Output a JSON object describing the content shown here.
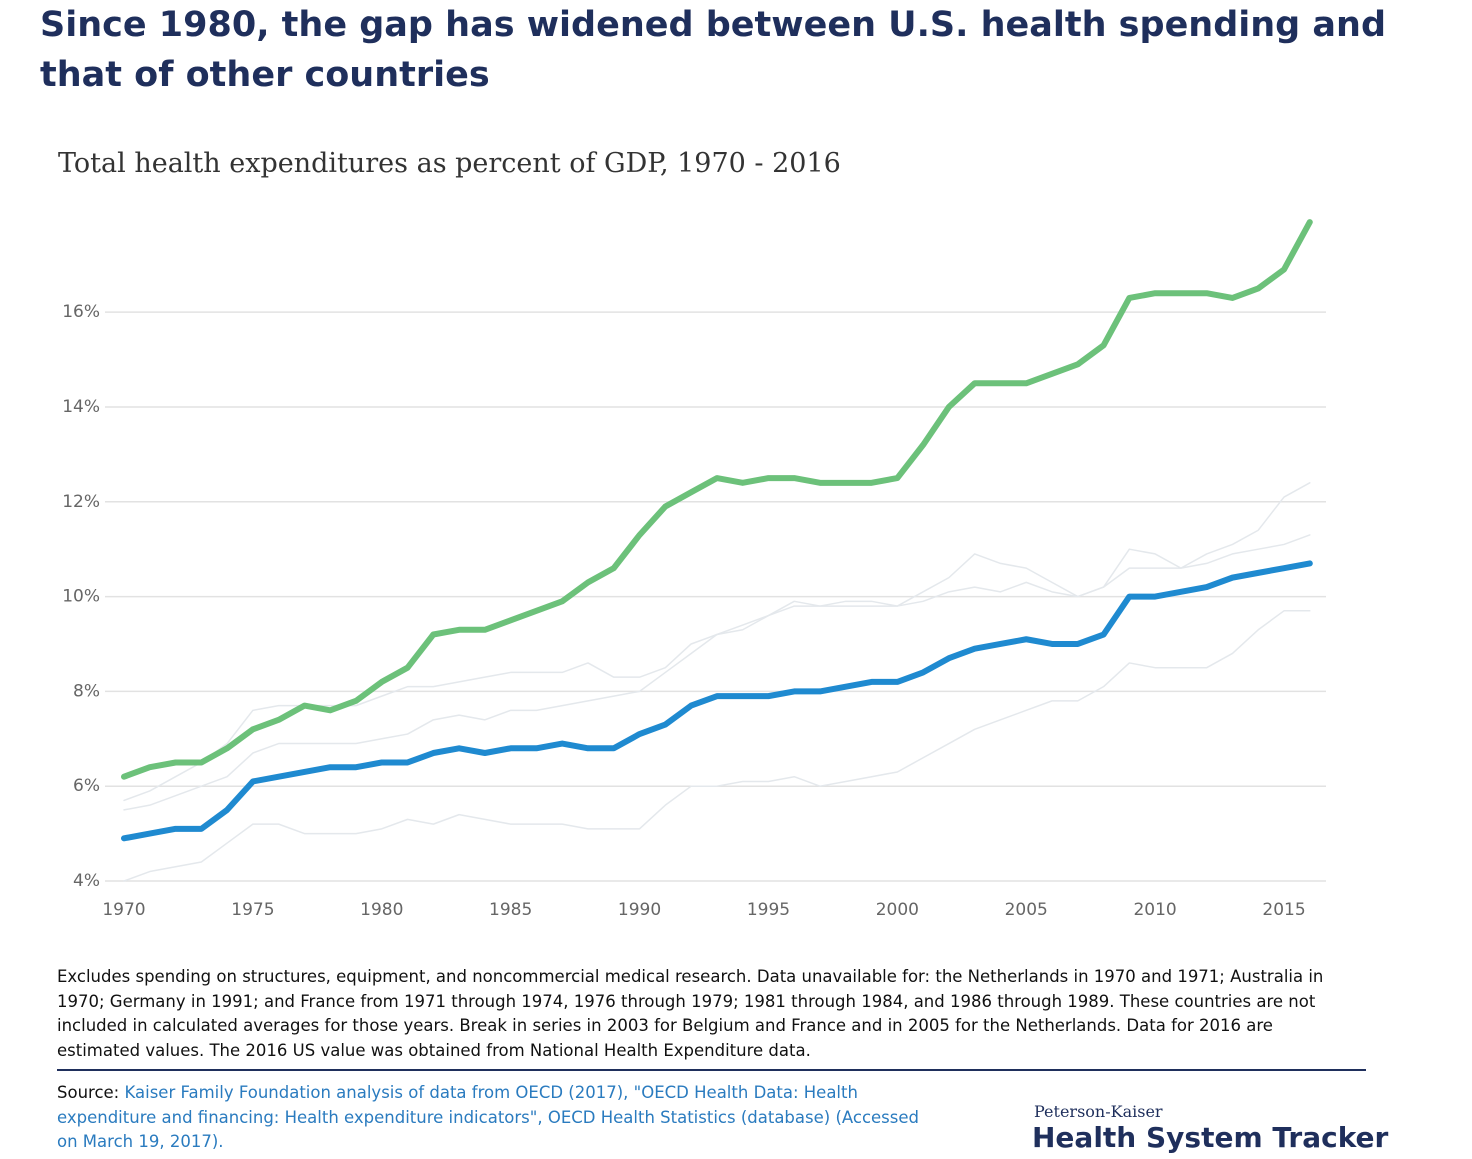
{
  "chart_data": {
    "type": "line",
    "title": "Since 1980, the gap has widened between U.S. health spending and that of other countries",
    "subtitle": "Total health expenditures as percent of GDP, 1970 - 2016",
    "note": "Excludes spending on structures, equipment, and noncommercial medical research. Data unavailable for: the Netherlands in 1970 and 1971; Australia in 1970; Germany in 1991; and France from 1971 through 1974, 1976 through 1979; 1981 through 1984, and 1986 through 1989. These countries are not included in calculated averages for those years. Break in series in 2003 for Belgium and France and in 2005 for the Netherlands. Data for 2016 are estimated values. The 2016 US value was obtained from National Health Expenditure data.",
    "source_label": "Source:",
    "source": "Kaiser Family Foundation analysis of data from OECD (2017), \"OECD Health Data: Health expenditure and financing: Health expenditure indicators\", OECD Health Statistics (database) (Accessed on March 19, 2017).",
    "brand_small": "Peterson-Kaiser",
    "brand_big": "Health System Tracker",
    "x": [
      1970,
      1971,
      1972,
      1973,
      1974,
      1975,
      1976,
      1977,
      1978,
      1979,
      1980,
      1981,
      1982,
      1983,
      1984,
      1985,
      1986,
      1987,
      1988,
      1989,
      1990,
      1991,
      1992,
      1993,
      1994,
      1995,
      1996,
      1997,
      1998,
      1999,
      2000,
      2001,
      2002,
      2003,
      2004,
      2005,
      2006,
      2007,
      2008,
      2009,
      2010,
      2011,
      2012,
      2013,
      2014,
      2015,
      2016
    ],
    "xlim": [
      1970,
      2016
    ],
    "xticks": [
      1970,
      1975,
      1980,
      1985,
      1990,
      1995,
      2000,
      2005,
      2010,
      2015
    ],
    "ylim": [
      4,
      18.4
    ],
    "yticks": [
      {
        "value": 4,
        "label": "4%"
      },
      {
        "value": 6,
        "label": "6%"
      },
      {
        "value": 8,
        "label": "8%"
      },
      {
        "value": 10,
        "label": "10%"
      },
      {
        "value": 12,
        "label": "12%"
      },
      {
        "value": 14,
        "label": "14%"
      },
      {
        "value": 16,
        "label": "16%"
      }
    ],
    "grid": true,
    "series": [
      {
        "color": "#e4e8ec",
        "width": 1.5,
        "values": [
          5.5,
          5.6,
          5.8,
          6.0,
          6.2,
          6.7,
          6.9,
          6.9,
          6.9,
          6.9,
          7.0,
          7.1,
          7.4,
          7.5,
          7.4,
          7.6,
          7.6,
          7.7,
          7.8,
          7.9,
          8.0,
          8.4,
          8.8,
          9.2,
          9.3,
          9.6,
          9.8,
          9.8,
          9.9,
          9.9,
          9.8,
          10.1,
          10.4,
          10.9,
          10.7,
          10.6,
          10.3,
          10.0,
          10.2,
          10.6,
          10.6,
          10.6,
          10.9,
          11.1,
          11.4,
          12.1,
          12.4
        ]
      },
      {
        "color": "#e4e8ec",
        "width": 1.5,
        "values": [
          5.7,
          5.9,
          6.2,
          6.5,
          6.9,
          7.6,
          7.7,
          7.7,
          7.7,
          7.7,
          7.9,
          8.1,
          8.1,
          8.2,
          8.3,
          8.4,
          8.4,
          8.4,
          8.6,
          8.3,
          8.3,
          8.5,
          9.0,
          9.2,
          9.4,
          9.6,
          9.9,
          9.8,
          9.8,
          9.8,
          9.8,
          9.9,
          10.1,
          10.2,
          10.1,
          10.3,
          10.1,
          10.0,
          10.2,
          11.0,
          10.9,
          10.6,
          10.7,
          10.9,
          11.0,
          11.1,
          11.3
        ]
      },
      {
        "color": "#e4e8ec",
        "width": 1.5,
        "values": [
          4.0,
          4.2,
          4.3,
          4.4,
          4.8,
          5.2,
          5.2,
          5.0,
          5.0,
          5.0,
          5.1,
          5.3,
          5.2,
          5.4,
          5.3,
          5.2,
          5.2,
          5.2,
          5.1,
          5.1,
          5.1,
          5.6,
          6.0,
          6.0,
          6.1,
          6.1,
          6.2,
          6.0,
          6.1,
          6.2,
          6.3,
          6.6,
          6.9,
          7.2,
          7.4,
          7.6,
          7.8,
          7.8,
          8.1,
          8.6,
          8.5,
          8.5,
          8.5,
          8.8,
          9.3,
          9.7,
          9.7
        ]
      },
      {
        "color": "#6cc17a",
        "width": 6,
        "values": [
          6.2,
          6.4,
          6.5,
          6.5,
          6.8,
          7.2,
          7.4,
          7.7,
          7.6,
          7.8,
          8.2,
          8.5,
          9.2,
          9.3,
          9.3,
          9.5,
          9.7,
          9.9,
          10.3,
          10.6,
          11.3,
          11.9,
          12.2,
          12.5,
          12.4,
          12.5,
          12.5,
          12.4,
          12.4,
          12.4,
          12.5,
          13.2,
          14.0,
          14.5,
          14.5,
          14.5,
          14.7,
          14.9,
          15.3,
          16.3,
          16.4,
          16.4,
          16.4,
          16.3,
          16.5,
          16.9,
          17.9
        ]
      },
      {
        "color": "#1f8ad0",
        "width": 6,
        "values": [
          4.9,
          5.0,
          5.1,
          5.1,
          5.5,
          6.1,
          6.2,
          6.3,
          6.4,
          6.4,
          6.5,
          6.5,
          6.7,
          6.8,
          6.7,
          6.8,
          6.8,
          6.9,
          6.8,
          6.8,
          7.1,
          7.3,
          7.7,
          7.9,
          7.9,
          7.9,
          8.0,
          8.0,
          8.1,
          8.2,
          8.2,
          8.4,
          8.7,
          8.9,
          9.0,
          9.1,
          9.0,
          9.0,
          9.2,
          10.0,
          10.0,
          10.1,
          10.2,
          10.4,
          10.5,
          10.6,
          10.7
        ]
      }
    ]
  }
}
